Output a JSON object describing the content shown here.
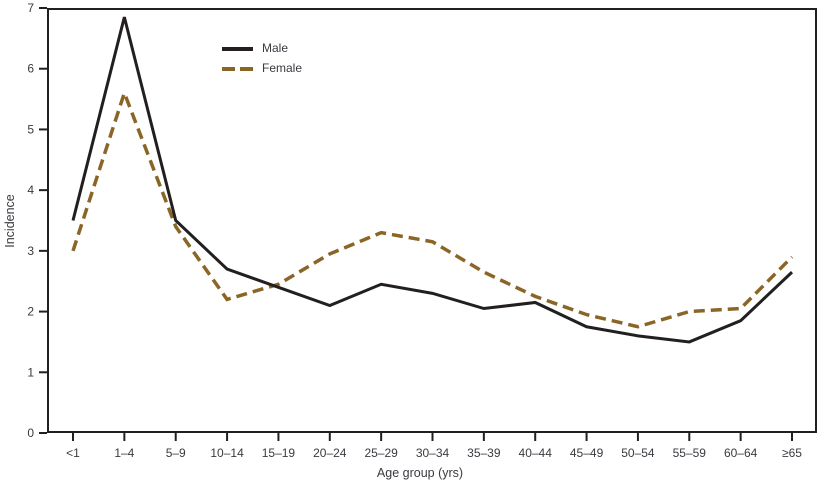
{
  "colors": {
    "male_line": "#231f20",
    "female_line": "#8b6526",
    "axis": "#231f20",
    "text": "#3a3a40",
    "background": "#ffffff"
  },
  "chart_data": {
    "type": "line",
    "title": "",
    "xlabel": "Age group (yrs)",
    "ylabel": "Incidence",
    "ylim": [
      0,
      7
    ],
    "yticks": [
      0,
      1,
      2,
      3,
      4,
      5,
      6,
      7
    ],
    "grid": false,
    "legend_position": "upper-left-inside",
    "categories": [
      "<1",
      "1–4",
      "5–9",
      "10–14",
      "15–19",
      "20–24",
      "25–29",
      "30–34",
      "35–39",
      "40–44",
      "45–49",
      "50–54",
      "55–59",
      "60–64",
      "≥65"
    ],
    "series": [
      {
        "name": "Male",
        "style": "solid",
        "color": "#231f20",
        "values": [
          3.5,
          6.85,
          3.5,
          2.7,
          2.4,
          2.1,
          2.45,
          2.3,
          2.05,
          2.15,
          1.75,
          1.6,
          1.5,
          1.85,
          2.65
        ]
      },
      {
        "name": "Female",
        "style": "dashed",
        "color": "#8b6526",
        "values": [
          3.0,
          5.6,
          3.4,
          2.2,
          2.45,
          2.95,
          3.3,
          3.15,
          2.65,
          2.25,
          1.95,
          1.75,
          2.0,
          2.05,
          2.9
        ]
      }
    ]
  }
}
